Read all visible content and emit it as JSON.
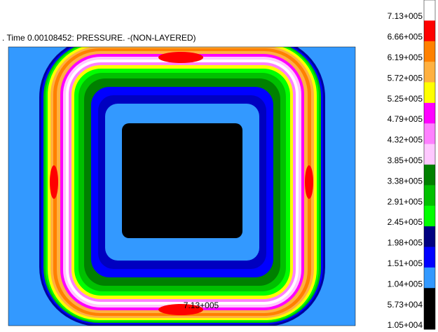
{
  "header": {
    "title": ". Time 0.00108452: PRESSURE. -(NON-LAYERED)"
  },
  "plot": {
    "annotation": "7.13+005"
  },
  "legend": {
    "labels": [
      "7.13+005",
      "6.66+005",
      "6.19+005",
      "5.72+005",
      "5.25+005",
      "4.79+005",
      "4.32+005",
      "3.85+005",
      "3.38+005",
      "2.91+005",
      "2.45+005",
      "1.98+005",
      "1.51+005",
      "1.04+005",
      "5.73+004",
      "1.05+004"
    ],
    "colors": [
      "#ffffff",
      "#ff0000",
      "#ff8000",
      "#ffb040",
      "#ffff00",
      "#ff00ff",
      "#ff80ff",
      "#ffc8ff",
      "#008000",
      "#00c000",
      "#00ff00",
      "#000080",
      "#0000ff",
      "#3399ff",
      "#000000",
      "#000000"
    ]
  }
}
